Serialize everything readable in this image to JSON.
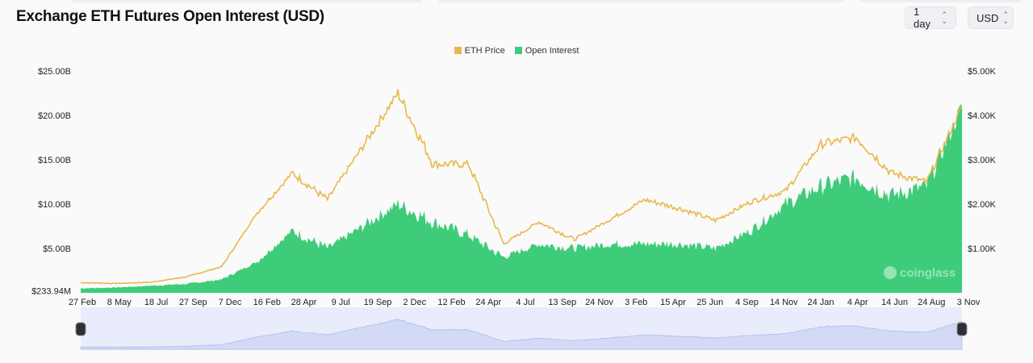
{
  "header": {
    "title": "Exchange ETH Futures Open Interest (USD)",
    "interval": "1 day",
    "currency": "USD"
  },
  "watermark": "coinglass",
  "chart_data": {
    "type": "line+area",
    "title": "Exchange ETH Futures Open Interest (USD)",
    "legend_position": "top-center",
    "series": [
      {
        "name": "ETH Price",
        "color": "#e8b84a",
        "axis": "right",
        "type": "line",
        "values": [
          230,
          210,
          240,
          360,
          590,
          1800,
          2700,
          2100,
          3300,
          4500,
          2900,
          2900,
          1100,
          1600,
          1200,
          1650,
          2100,
          1900,
          1630,
          2050,
          2300,
          3350,
          3500,
          2700,
          2500,
          4200
        ]
      },
      {
        "name": "Open Interest",
        "color": "#3fcc7a",
        "axis": "left",
        "type": "area",
        "values": [
          0.5,
          0.6,
          0.8,
          1.0,
          1.5,
          3.5,
          7.0,
          5.0,
          7.5,
          10.0,
          8.0,
          6.5,
          4.0,
          5.5,
          5.0,
          5.5,
          5.5,
          5.5,
          5.0,
          7.0,
          10.0,
          12.0,
          13.0,
          11.0,
          12.0,
          21.0
        ]
      }
    ],
    "x": [
      "27 Feb",
      "8 May",
      "18 Jul",
      "27 Sep",
      "7 Dec",
      "16 Feb",
      "28 Apr",
      "9 Jul",
      "19 Sep",
      "2 Dec",
      "12 Feb",
      "24 Apr",
      "4 Jul",
      "13 Sep",
      "24 Nov",
      "3 Feb",
      "15 Apr",
      "25 Jun",
      "4 Sep",
      "14 Nov",
      "24 Jan",
      "4 Apr",
      "14 Jun",
      "24 Aug",
      "3 Nov",
      ""
    ],
    "x_tick_labels": [
      "27 Feb",
      "8 May",
      "18 Jul",
      "27 Sep",
      "7 Dec",
      "16 Feb",
      "28 Apr",
      "9 Jul",
      "19 Sep",
      "2 Dec",
      "12 Feb",
      "24 Apr",
      "4 Jul",
      "13 Sep",
      "24 Nov",
      "3 Feb",
      "15 Apr",
      "25 Jun",
      "4 Sep",
      "14 Nov",
      "24 Jan",
      "4 Apr",
      "14 Jun",
      "24 Aug",
      "3 Nov"
    ],
    "y_left_ticks": [
      "$233.94M",
      "$5.00B",
      "$10.00B",
      "$15.00B",
      "$20.00B",
      "$25.00B"
    ],
    "y_left_range": [
      0.23394,
      25
    ],
    "y_right_ticks": [
      "$1.00K",
      "$2.00K",
      "$3.00K",
      "$4.00K",
      "$5.00K"
    ],
    "y_right_range": [
      0,
      5000
    ],
    "grid": false
  }
}
